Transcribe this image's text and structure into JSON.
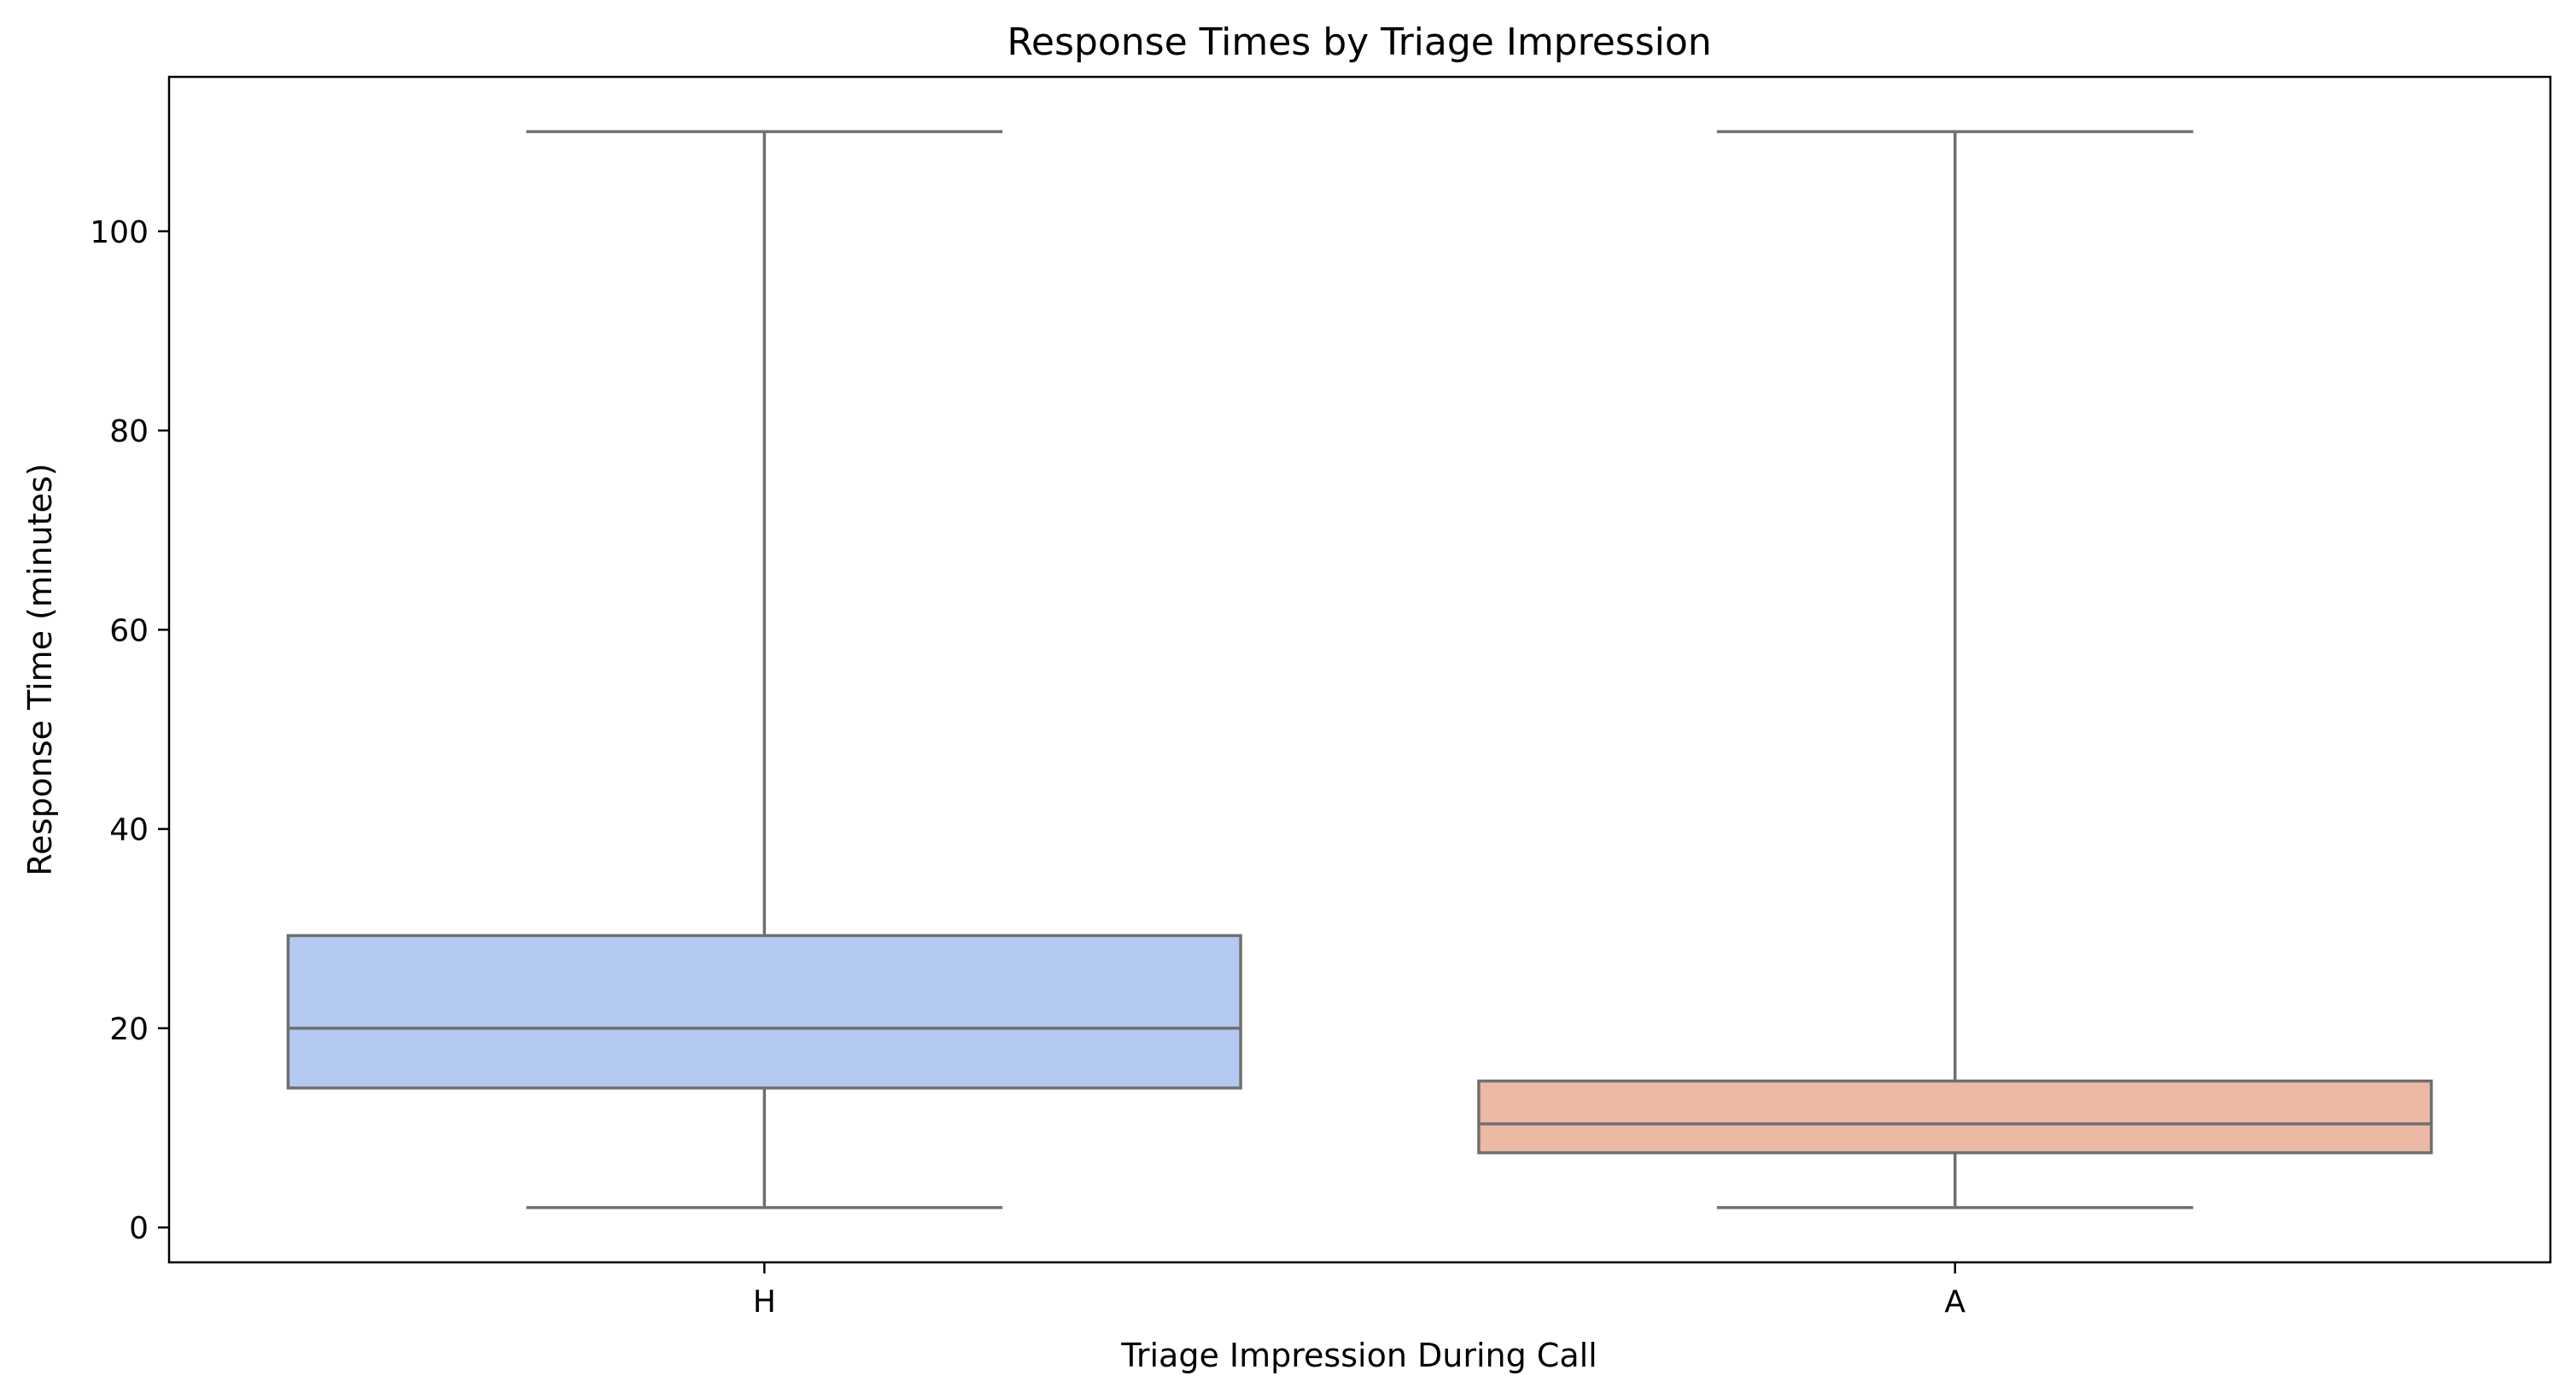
{
  "chart_data": {
    "type": "box",
    "title": "Response Times by Triage Impression",
    "xlabel": "Triage Impression During Call",
    "ylabel": "Response Time (minutes)",
    "categories": [
      "H",
      "A"
    ],
    "boxes": [
      {
        "category": "H",
        "whisker_low": 2,
        "q1": 14,
        "median": 20,
        "q3": 29.3,
        "whisker_high": 110,
        "color": "#b3c9f2"
      },
      {
        "category": "A",
        "whisker_low": 2,
        "q1": 7.5,
        "median": 10.4,
        "q3": 14.7,
        "whisker_high": 110,
        "color": "#ecb9a4"
      }
    ],
    "ylim": [
      -3.5,
      115.5
    ],
    "yticks": [
      0,
      20,
      40,
      60,
      80,
      100
    ],
    "grid": false,
    "line_color": "#707070"
  }
}
